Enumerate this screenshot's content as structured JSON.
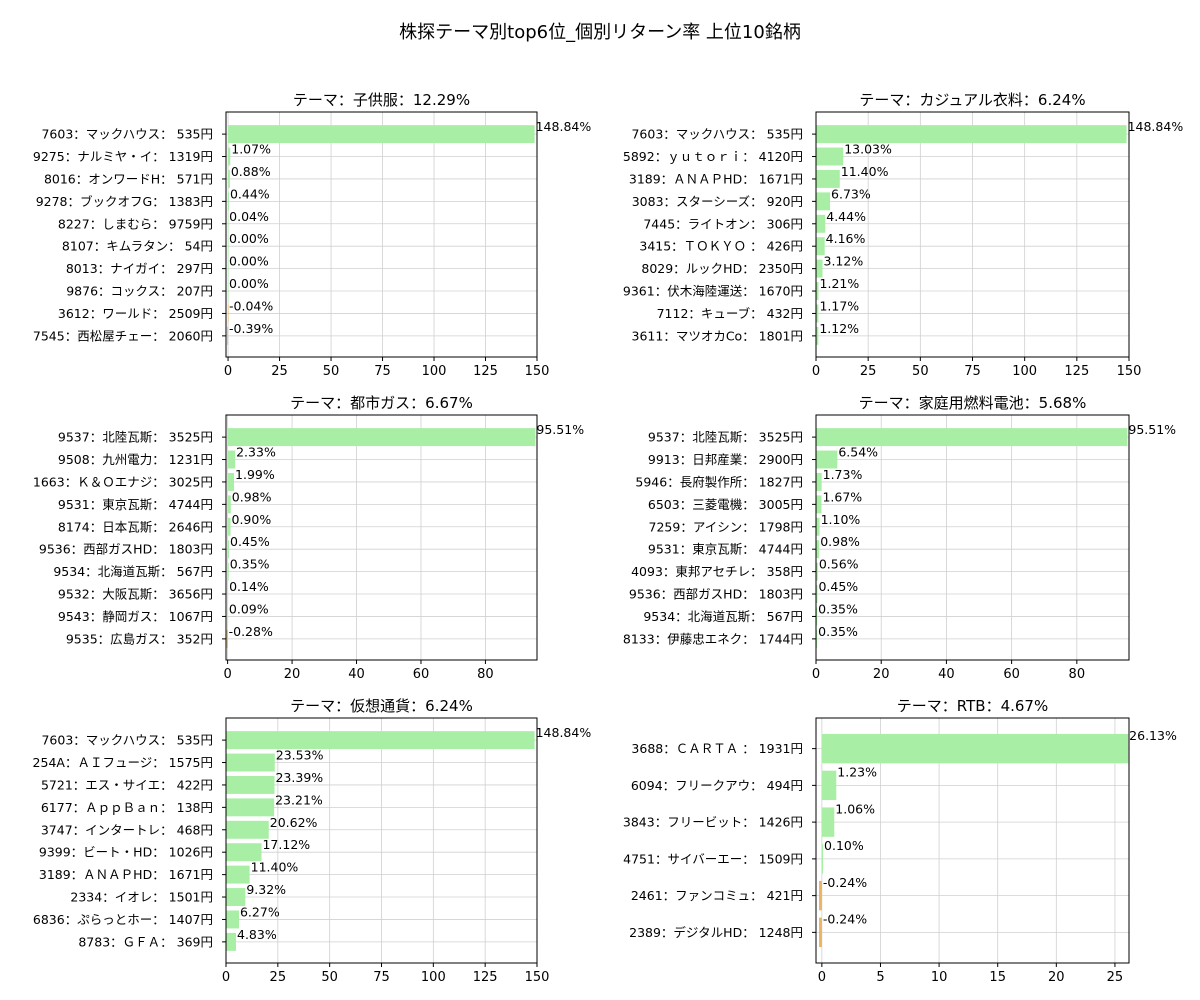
{
  "title": "株探テーマ別top6位_個別リターン率 上位10銘柄",
  "colors": {
    "positive": "#a8eea5",
    "negative": "#ebb45f",
    "grid": "#d0d0d0"
  },
  "chart_data": [
    {
      "type": "bar",
      "orientation": "horizontal",
      "title": "テーマ：子供服：12.29%",
      "categories": [
        "7603：マックハウス： 535円",
        "9275：ナルミヤ・イ： 1319円",
        "8016：オンワードH： 571円",
        "9278：ブックオフG： 1383円",
        "8227：しまむら： 9759円",
        "8107：キムラタン： 54円",
        "8013：ナイガイ： 297円",
        "9876：コックス： 207円",
        "3612：ワールド： 2509円",
        "7545：西松屋チェー： 2060円"
      ],
      "values": [
        148.84,
        1.07,
        0.88,
        0.44,
        0.04,
        0.0,
        0.0,
        0.0,
        -0.04,
        -0.39
      ],
      "labels": [
        "148.84%",
        "1.07%",
        "0.88%",
        "0.44%",
        "0.04%",
        "0.00%",
        "0.00%",
        "0.00%",
        "-0.04%",
        "-0.39%"
      ],
      "xlim": [
        -1,
        150
      ],
      "xticks": [
        0,
        25,
        50,
        75,
        100,
        125,
        150
      ],
      "grid": true
    },
    {
      "type": "bar",
      "orientation": "horizontal",
      "title": "テーマ：カジュアル衣料：6.24%",
      "categories": [
        "7603：マックハウス： 535円",
        "5892：ｙｕｔｏｒｉ： 4120円",
        "3189：ＡＮＡＰHD： 1671円",
        "3083：スターシーズ： 920円",
        "7445：ライトオン： 306円",
        "3415：ＴＯＫＹＯ ： 426円",
        "8029：ルックHD： 2350円",
        "9361：伏木海陸運送： 1670円",
        "7112：キューブ： 432円",
        "3611：マツオカCo： 1801円"
      ],
      "values": [
        148.84,
        13.03,
        11.4,
        6.73,
        4.44,
        4.16,
        3.12,
        1.21,
        1.17,
        1.12
      ],
      "labels": [
        "148.84%",
        "13.03%",
        "11.40%",
        "6.73%",
        "4.44%",
        "4.16%",
        "3.12%",
        "1.21%",
        "1.17%",
        "1.12%"
      ],
      "xlim": [
        0,
        150
      ],
      "xticks": [
        0,
        25,
        50,
        75,
        100,
        125,
        150
      ],
      "grid": true
    },
    {
      "type": "bar",
      "orientation": "horizontal",
      "title": "テーマ：都市ガス：6.67%",
      "categories": [
        "9537：北陸瓦斯： 3525円",
        "9508：九州電力： 1231円",
        "1663：Ｋ＆Ｏエナジ： 3025円",
        "9531：東京瓦斯： 4744円",
        "8174：日本瓦斯： 2646円",
        "9536：西部ガスHD： 1803円",
        "9534：北海道瓦斯： 567円",
        "9532：大阪瓦斯： 3656円",
        "9543：静岡ガス： 1067円",
        "9535：広島ガス： 352円"
      ],
      "values": [
        95.51,
        2.33,
        1.99,
        0.98,
        0.9,
        0.45,
        0.35,
        0.14,
        0.09,
        -0.28
      ],
      "labels": [
        "95.51%",
        "2.33%",
        "1.99%",
        "0.98%",
        "0.90%",
        "0.45%",
        "0.35%",
        "0.14%",
        "0.09%",
        "-0.28%"
      ],
      "xlim": [
        -0.5,
        96
      ],
      "xticks": [
        0,
        20,
        40,
        60,
        80
      ],
      "grid": true
    },
    {
      "type": "bar",
      "orientation": "horizontal",
      "title": "テーマ：家庭用燃料電池：5.68%",
      "categories": [
        "9537：北陸瓦斯： 3525円",
        "9913：日邦産業： 2900円",
        "5946：長府製作所： 1827円",
        "6503：三菱電機： 3005円",
        "7259：アイシン： 1798円",
        "9531：東京瓦斯： 4744円",
        "4093：東邦アセチレ： 358円",
        "9536：西部ガスHD： 1803円",
        "9534：北海道瓦斯： 567円",
        "8133：伊藤忠エネク： 1744円"
      ],
      "values": [
        95.51,
        6.54,
        1.73,
        1.67,
        1.1,
        0.98,
        0.56,
        0.45,
        0.35,
        0.35
      ],
      "labels": [
        "95.51%",
        "6.54%",
        "1.73%",
        "1.67%",
        "1.10%",
        "0.98%",
        "0.56%",
        "0.45%",
        "0.35%",
        "0.35%"
      ],
      "xlim": [
        0,
        96
      ],
      "xticks": [
        0,
        20,
        40,
        60,
        80
      ],
      "grid": true
    },
    {
      "type": "bar",
      "orientation": "horizontal",
      "title": "テーマ：仮想通貨：6.24%",
      "categories": [
        "7603：マックハウス： 535円",
        "254A：ＡＩフュージ： 1575円",
        "5721：エス・サイエ： 422円",
        "6177：ＡｐｐＢａｎ： 138円",
        "3747：インタートレ： 468円",
        "9399：ビート・HD： 1026円",
        "3189：ＡＮＡＰHD： 1671円",
        "2334：イオレ： 1501円",
        "6836：ぷらっとホー： 1407円",
        "8783：ＧＦＡ： 369円"
      ],
      "values": [
        148.84,
        23.53,
        23.39,
        23.21,
        20.62,
        17.12,
        11.4,
        9.32,
        6.27,
        4.83
      ],
      "labels": [
        "148.84%",
        "23.53%",
        "23.39%",
        "23.21%",
        "20.62%",
        "17.12%",
        "11.40%",
        "9.32%",
        "6.27%",
        "4.83%"
      ],
      "xlim": [
        0,
        150
      ],
      "xticks": [
        0,
        25,
        50,
        75,
        100,
        125,
        150
      ],
      "grid": true
    },
    {
      "type": "bar",
      "orientation": "horizontal",
      "title": "テーマ：RTB：4.67%",
      "categories": [
        "3688：ＣＡＲＴＡ ： 1931円",
        "6094：フリークアウ： 494円",
        "3843：フリービット： 1426円",
        "4751：サイバーエー： 1509円",
        "2461：ファンコミュ： 421円",
        "2389：デジタルHD： 1248円"
      ],
      "values": [
        26.13,
        1.23,
        1.06,
        0.1,
        -0.24,
        -0.24
      ],
      "labels": [
        "26.13%",
        "1.23%",
        "1.06%",
        "0.10%",
        "-0.24%",
        "-0.24%"
      ],
      "xlim": [
        -0.5,
        26.2
      ],
      "xticks": [
        0,
        5,
        10,
        15,
        20,
        25
      ],
      "grid": true
    }
  ]
}
